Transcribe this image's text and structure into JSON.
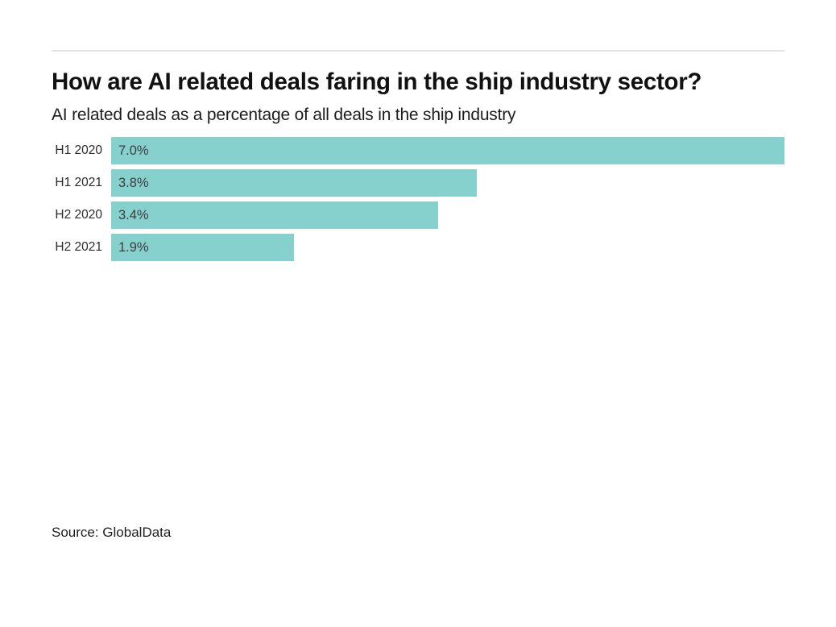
{
  "page": {
    "title": "How are AI related deals faring in the ship industry sector?",
    "subtitle": "AI related deals as a percentage of all deals in the ship industry",
    "source_text": "Source: GlobalData"
  },
  "chart_data": {
    "type": "bar",
    "orientation": "horizontal",
    "title": "How are AI related deals faring in the ship industry sector?",
    "subtitle": "AI related deals as a percentage of all deals in the ship industry",
    "categories": [
      "H1 2020",
      "H1 2021",
      "H2 2020",
      "H2 2021"
    ],
    "values": [
      7.0,
      3.8,
      3.4,
      1.9
    ],
    "value_labels": [
      "7.0%",
      "3.8%",
      "3.4%",
      "1.9%"
    ],
    "unit": "%",
    "xlim": [
      0,
      7.0
    ],
    "grid": false,
    "legend": false,
    "bar_color": "#86d1cd",
    "source": "Source: GlobalData"
  },
  "colors": {
    "bar": "#86d1cd",
    "title_text": "#111111",
    "label_text": "#2b2b2b",
    "value_text": "#3d3d3d",
    "divider": "#e3e3e3",
    "background": "#ffffff"
  }
}
